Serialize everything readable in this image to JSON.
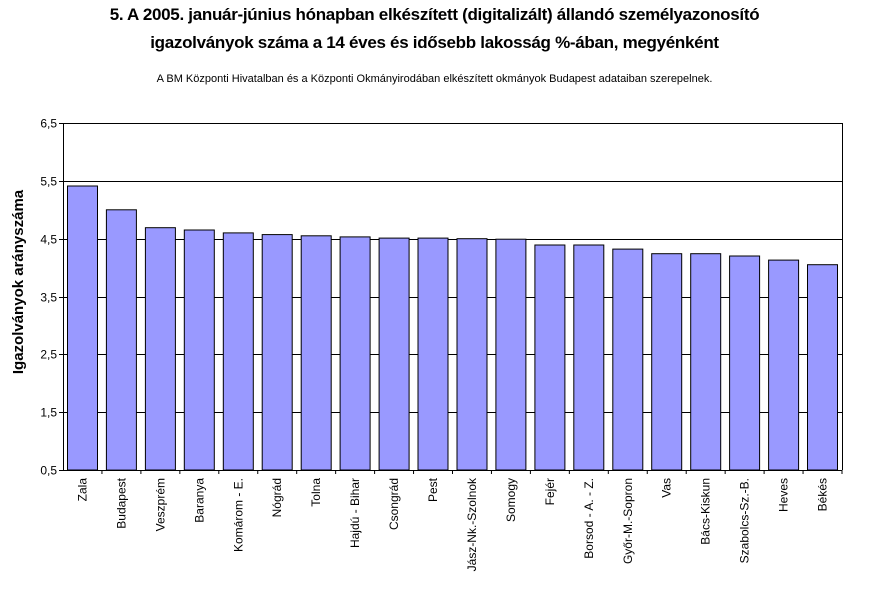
{
  "chart_data": {
    "type": "bar",
    "title_line1": "5. A 2005. január-június hónapban elkészített (digitalizált) állandó személyazonosító",
    "title_line2": "igazolványok száma a 14 éves és idősebb lakosság %-ában,  megyénként",
    "subtitle": "A BM Központi Hivatalban és a Központi Okmányirodában elkészített  okmányok Budapest adataiban szerepelnek.",
    "ylabel": "Igazolványok arányszáma",
    "xlabel": "",
    "ylim": [
      0.5,
      6.5
    ],
    "yticks": [
      "0,5",
      "1,5",
      "2,5",
      "3,5",
      "4,5",
      "5,5",
      "6,5"
    ],
    "ytick_values": [
      0.5,
      1.5,
      2.5,
      3.5,
      4.5,
      5.5,
      6.5
    ],
    "grid": true,
    "bar_color": "#9999ff",
    "bar_edge_color": "#000000",
    "categories": [
      "Zala",
      "Budapest",
      "Veszprém",
      "Baranya",
      "Komárom - E.",
      "Nógrád",
      "Tolna",
      "Hajdú - Bihar",
      "Csongrád",
      "Pest",
      "Jász-Nk.-Szolnok",
      "Somogy",
      "Fejér",
      "Borsod - A. - Z.",
      "Győr-M.-Sopron",
      "Vas",
      "Bács-Kiskun",
      "Szabolcs-Sz.-B.",
      "Heves",
      "Békés"
    ],
    "values": [
      5.41,
      5.0,
      4.69,
      4.65,
      4.6,
      4.57,
      4.55,
      4.53,
      4.51,
      4.51,
      4.5,
      4.49,
      4.39,
      4.39,
      4.32,
      4.24,
      4.24,
      4.2,
      4.13,
      4.05
    ]
  }
}
